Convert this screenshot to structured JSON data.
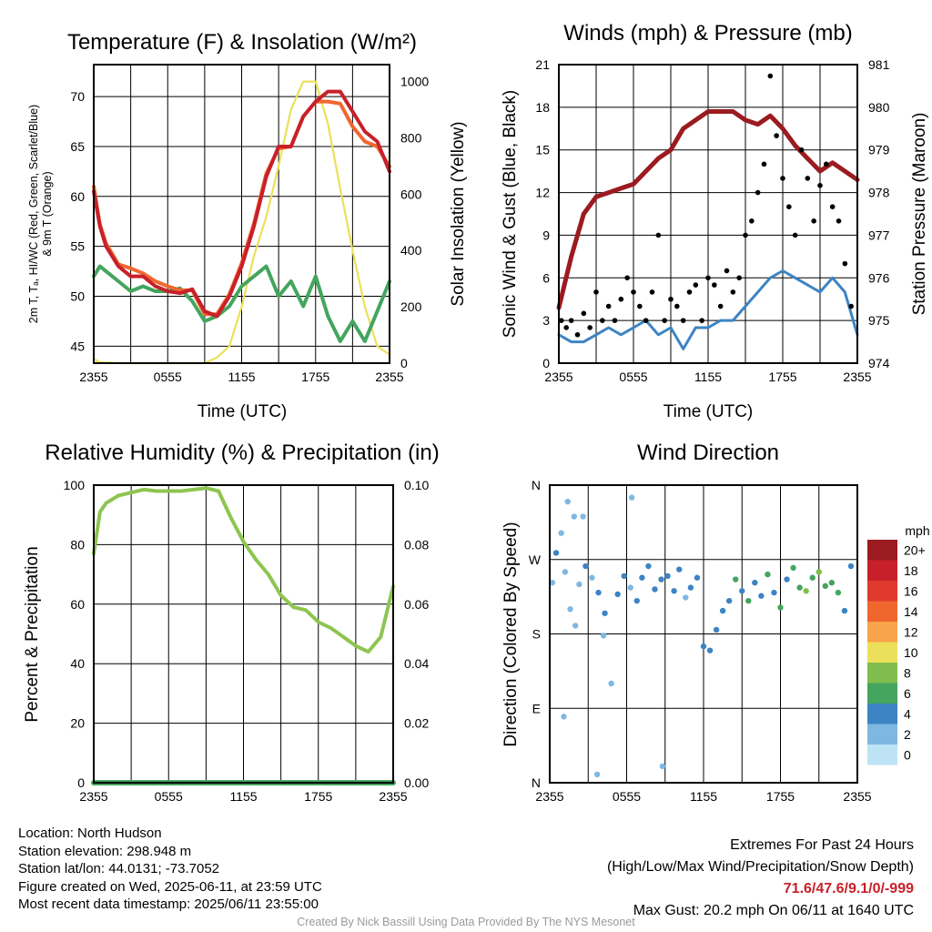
{
  "panels": {
    "temperature": {
      "title": "Temperature (F) & Insolation (W/m²)",
      "y_label_lines": [
        "2m T, Tₐ, HI/WC (Red, Green, Scarlet/Blue)",
        "& 9m T (Orange)"
      ],
      "y2_label": "Solar Insolation (Yellow)",
      "x_label": "Time (UTC)"
    },
    "winds": {
      "title": "Winds (mph) & Pressure (mb)",
      "y_label": "Sonic Wind & Gust (Blue, Black)",
      "y2_label": "Station Pressure (Maroon)",
      "x_label": "Time (UTC)"
    },
    "humidity": {
      "title": "Relative Humidity (%) & Precipitation (in)",
      "y_label": "Percent & Precipitation"
    },
    "direction": {
      "title": "Wind Direction",
      "y_label": "Direction (Colored By Speed)",
      "colorbar_title": "mph",
      "colorbar_labels": [
        "20+",
        "18",
        "16",
        "14",
        "12",
        "10",
        "8",
        "6",
        "4",
        "2",
        "0"
      ],
      "colorbar_colors": [
        "#9b1b20",
        "#c8202a",
        "#e03a2e",
        "#f0672e",
        "#f8a44a",
        "#ece05a",
        "#80bd4c",
        "#44a55e",
        "#3c84c4",
        "#7eb8e2",
        "#bde3f5"
      ]
    }
  },
  "info": {
    "location": "Location: North Hudson",
    "elevation": "Station elevation: 298.948 m",
    "latlon": "Station lat/lon: 44.0131; -73.7052",
    "created": "Figure created on Wed, 2025-06-11, at 23:59 UTC",
    "recent": "Most recent data timestamp: 2025/06/11 23:55:00"
  },
  "extremes": {
    "title": "Extremes For Past 24 Hours",
    "subtitle": "(High/Low/Max Wind/Precipitation/Snow Depth)",
    "values": "71.6/47.6/9.1/0/-999",
    "max_gust": "Max Gust: 20.2 mph On 06/11 at 1640 UTC"
  },
  "credit": "Created By Nick Bassill Using Data Provided By The NYS Mesonet",
  "chart_data": [
    {
      "type": "line",
      "name": "temperature",
      "title": "Temperature (F) & Insolation (W/m²)",
      "xlabel": "Time (UTC)",
      "ylabel": "2m T, Tₐ, HI/WC (Red, Green, Scarlet/Blue) & 9m T (Orange)",
      "y2label": "Solar Insolation (Yellow)",
      "x_ticks": [
        "2355",
        "0555",
        "1155",
        "1755",
        "2355"
      ],
      "y_ticks": [
        45,
        50,
        55,
        60,
        65,
        70
      ],
      "y2_ticks": [
        0,
        200,
        400,
        600,
        800,
        1000
      ],
      "xlim": [
        0,
        24
      ],
      "ylim": [
        43.3,
        73.2
      ],
      "y2lim": [
        0,
        1060
      ],
      "x": [
        0,
        0.5,
        1,
        2,
        3,
        4,
        5,
        6,
        7,
        8,
        9,
        10,
        11,
        12,
        13,
        14,
        15,
        16,
        17,
        18,
        19,
        20,
        21,
        22,
        23,
        24
      ],
      "series": [
        {
          "color": "#c8202a",
          "values": [
            60.5,
            57,
            55,
            53,
            52,
            52,
            51,
            50.5,
            50.3,
            50.7,
            48.5,
            48,
            50,
            53,
            57,
            62,
            65,
            65,
            68,
            69.5,
            70.5,
            70.5,
            68.5,
            66.5,
            65.5,
            62.5
          ]
        },
        {
          "color": "#f0672e",
          "values": [
            61,
            57.2,
            55.3,
            53.2,
            52.8,
            52.3,
            51.5,
            51,
            50.6,
            50.6,
            48.2,
            48.2,
            50.2,
            53.3,
            57.3,
            62.3,
            64.8,
            65,
            68,
            69.5,
            69.5,
            69.3,
            67,
            65.5,
            65,
            63
          ]
        },
        {
          "color": "#44a55e",
          "values": [
            52,
            53,
            52.5,
            51.5,
            50.5,
            51,
            50.5,
            50.5,
            50.8,
            49.5,
            47.5,
            48,
            49,
            51,
            52,
            53,
            50,
            51.5,
            49,
            52,
            48,
            45.5,
            47.5,
            45.5,
            48.5,
            51.5
          ]
        },
        {
          "color": "#ece05a",
          "values": [
            15,
            3,
            2,
            0,
            0,
            0,
            0,
            0,
            0,
            0,
            0,
            20,
            60,
            200,
            380,
            520,
            700,
            900,
            1000,
            1000,
            850,
            620,
            400,
            200,
            60,
            30
          ]
        }
      ]
    },
    {
      "type": "line",
      "name": "winds",
      "title": "Winds (mph) & Pressure (mb)",
      "xlabel": "Time (UTC)",
      "ylabel": "Sonic Wind & Gust (Blue, Black)",
      "y2label": "Station Pressure (Maroon)",
      "x_ticks": [
        "2355",
        "0555",
        "1155",
        "1755",
        "2355"
      ],
      "y_ticks": [
        0,
        3,
        6,
        9,
        12,
        15,
        18,
        21
      ],
      "y2_ticks": [
        974,
        975,
        976,
        977,
        978,
        979,
        980,
        981
      ],
      "xlim": [
        0,
        24
      ],
      "ylim": [
        0,
        21
      ],
      "y2lim": [
        974,
        981
      ],
      "x": [
        0,
        1,
        2,
        3,
        4,
        5,
        6,
        7,
        8,
        9,
        10,
        11,
        12,
        13,
        14,
        15,
        16,
        17,
        18,
        19,
        20,
        21,
        22,
        23,
        24
      ],
      "series": [
        {
          "color": "#3c84c4",
          "values": [
            2,
            1.5,
            1.5,
            2,
            2.5,
            2,
            2.5,
            3,
            2,
            2.5,
            1,
            2.5,
            2.5,
            3,
            3,
            4,
            5,
            6,
            6.5,
            6,
            5.5,
            5,
            6,
            5,
            2
          ]
        },
        {
          "color": "#9b1b20",
          "values": [
            975.3,
            976.5,
            977.5,
            977.9,
            978,
            978.1,
            978.2,
            978.5,
            978.8,
            979,
            979.5,
            979.7,
            979.9,
            979.9,
            979.9,
            979.7,
            979.6,
            979.8,
            979.5,
            979.1,
            978.8,
            978.5,
            978.7,
            978.5,
            978.3
          ]
        }
      ],
      "gust_scatter": {
        "x": [
          0.2,
          0.6,
          1,
          1.5,
          2,
          2.5,
          3,
          3.5,
          4,
          4.5,
          5,
          5.5,
          6,
          6.5,
          7,
          7.5,
          8,
          8.5,
          9,
          9.5,
          10,
          10.5,
          11,
          11.5,
          12,
          12.5,
          13,
          13.5,
          14,
          14.5,
          15,
          15.5,
          16,
          16.5,
          17,
          17.5,
          18,
          18.5,
          19,
          19.5,
          20,
          20.5,
          21,
          21.5,
          22,
          22.5,
          23,
          23.5
        ],
        "y": [
          3,
          2.5,
          3,
          2,
          3.5,
          2.5,
          5,
          3,
          4,
          3,
          4.5,
          6,
          5,
          4,
          3,
          5,
          9,
          3,
          4.5,
          4,
          3,
          5,
          5.5,
          3,
          6,
          5.5,
          4,
          6.5,
          5,
          6,
          9,
          10,
          12,
          14,
          20.2,
          16,
          13,
          11,
          9,
          15,
          13,
          10,
          12.5,
          14,
          11,
          10,
          7,
          4
        ]
      }
    },
    {
      "type": "line",
      "name": "humidity",
      "title": "Relative Humidity (%) & Precipitation (in)",
      "ylabel": "Percent & Precipitation",
      "x_ticks": [
        "2355",
        "0555",
        "1155",
        "1755",
        "2355"
      ],
      "y_ticks": [
        0,
        20,
        40,
        60,
        80,
        100
      ],
      "y2_ticks": [
        "0.00",
        "0.02",
        "0.04",
        "0.06",
        "0.08",
        "0.10"
      ],
      "xlim": [
        0,
        24
      ],
      "ylim": [
        0,
        100
      ],
      "y2lim": [
        0,
        0.1
      ],
      "x": [
        0,
        0.5,
        1,
        2,
        3,
        4,
        5,
        6,
        7,
        8,
        9,
        10,
        11,
        12,
        13,
        14,
        15,
        16,
        17,
        18,
        19,
        20,
        21,
        22,
        23,
        24
      ],
      "series": [
        {
          "color": "#8dc550",
          "values": [
            77,
            91,
            94,
            96.5,
            97.5,
            98.5,
            98,
            98,
            98,
            98.5,
            99,
            98,
            89,
            81,
            75,
            70,
            63,
            59,
            58,
            54,
            52,
            49,
            46,
            44,
            49,
            66
          ]
        },
        {
          "color": "#44a55e",
          "values": [
            0,
            0,
            0,
            0,
            0,
            0,
            0,
            0,
            0,
            0,
            0,
            0,
            0,
            0,
            0,
            0,
            0,
            0,
            0,
            0,
            0,
            0,
            0,
            0,
            0,
            0
          ]
        }
      ]
    },
    {
      "type": "scatter",
      "name": "direction",
      "title": "Wind Direction",
      "ylabel": "Direction (Colored By Speed)",
      "x_ticks": [
        "2355",
        "0555",
        "1155",
        "1755",
        "2355"
      ],
      "y_ticks": [
        "N",
        "E",
        "S",
        "W",
        "N"
      ],
      "xlim": [
        0,
        24
      ],
      "ylim": [
        0,
        360
      ],
      "legend": "right",
      "colorbar_label": "mph",
      "x": [
        0.2,
        0.5,
        0.9,
        1.2,
        1.6,
        2,
        2.3,
        2.8,
        3.3,
        3.8,
        4.3,
        4.8,
        5.3,
        5.8,
        6.3,
        6.8,
        7.2,
        7.7,
        8.2,
        8.7,
        9.2,
        9.7,
        10.1,
        10.6,
        11,
        11.5,
        12,
        12.5,
        13,
        13.5,
        14,
        14.5,
        15,
        15.5,
        16,
        16.5,
        17,
        17.5,
        18,
        18.5,
        19,
        19.5,
        20,
        20.5,
        21,
        21.5,
        22,
        22.5,
        23,
        23.5,
        1.4,
        1.9,
        6.4,
        3.7,
        1.1,
        8.8,
        4.2,
        2.6
      ],
      "y": [
        242,
        278,
        302,
        255,
        210,
        190,
        240,
        262,
        248,
        230,
        205,
        120,
        228,
        250,
        236,
        220,
        248,
        262,
        234,
        246,
        250,
        232,
        258,
        224,
        236,
        248,
        165,
        160,
        185,
        208,
        220,
        246,
        232,
        220,
        242,
        226,
        252,
        230,
        212,
        246,
        260,
        236,
        232,
        248,
        255,
        238,
        242,
        230,
        208,
        262,
        340,
        322,
        345,
        10,
        80,
        20,
        178,
        322
      ],
      "speed": [
        2,
        3,
        2,
        1,
        2,
        2,
        1,
        3,
        2,
        3,
        3,
        2,
        3,
        4,
        2,
        3,
        4,
        3,
        3,
        4,
        3,
        3,
        4,
        2,
        3,
        3,
        3,
        3,
        3,
        4,
        4,
        5,
        4,
        5,
        4,
        4,
        6,
        4,
        5,
        4,
        6,
        5,
        7,
        6,
        7,
        6,
        6,
        5,
        3,
        4,
        2,
        1,
        2,
        1,
        2,
        2,
        1,
        1
      ]
    }
  ]
}
